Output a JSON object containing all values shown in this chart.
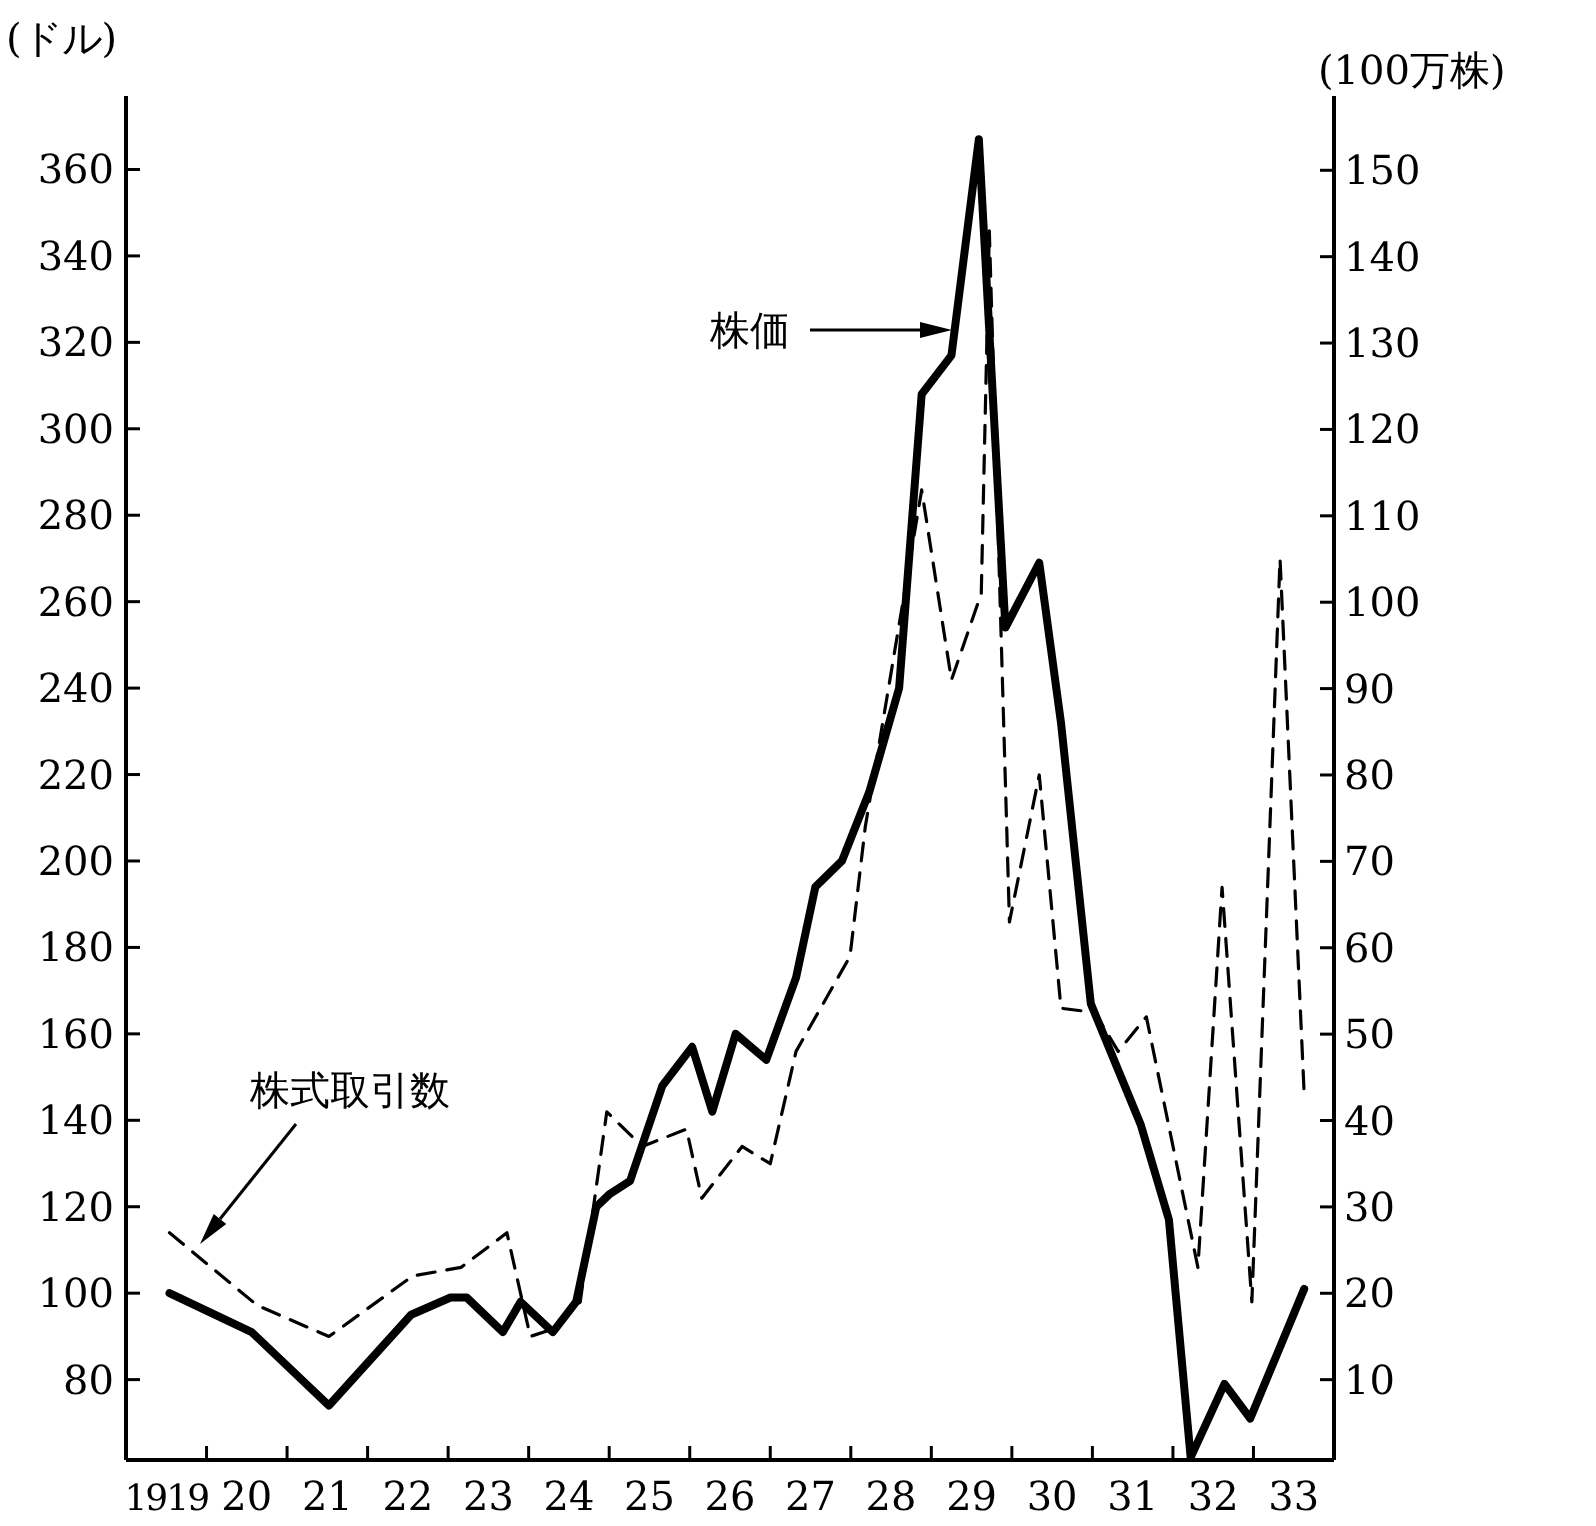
{
  "chart_data": {
    "type": "line",
    "ylabel": "(ドル)",
    "y2label": "(100万株)",
    "xlim": [
      1918.5,
      1933.5
    ],
    "xticks": [
      {
        "value": 1919,
        "label": "1919"
      },
      {
        "value": 1919.5,
        "label": null
      },
      {
        "value": 1920,
        "label": "20"
      },
      {
        "value": 1920.5,
        "label": null
      },
      {
        "value": 1921,
        "label": "21"
      },
      {
        "value": 1921.5,
        "label": null
      },
      {
        "value": 1922,
        "label": "22"
      },
      {
        "value": 1922.5,
        "label": null
      },
      {
        "value": 1923,
        "label": "23"
      },
      {
        "value": 1923.5,
        "label": null
      },
      {
        "value": 1924,
        "label": "24"
      },
      {
        "value": 1924.5,
        "label": null
      },
      {
        "value": 1925,
        "label": "25"
      },
      {
        "value": 1925.5,
        "label": null
      },
      {
        "value": 1926,
        "label": "26"
      },
      {
        "value": 1926.5,
        "label": null
      },
      {
        "value": 1927,
        "label": "27"
      },
      {
        "value": 1927.5,
        "label": null
      },
      {
        "value": 1928,
        "label": "28"
      },
      {
        "value": 1928.5,
        "label": null
      },
      {
        "value": 1929,
        "label": "29"
      },
      {
        "value": 1929.5,
        "label": null
      },
      {
        "value": 1930,
        "label": "30"
      },
      {
        "value": 1930.5,
        "label": null
      },
      {
        "value": 1931,
        "label": "31"
      },
      {
        "value": 1931.5,
        "label": null
      },
      {
        "value": 1932,
        "label": "32"
      },
      {
        "value": 1932.5,
        "label": null
      },
      {
        "value": 1933,
        "label": "33"
      }
    ],
    "ylim": [
      61.4,
      377
    ],
    "yticks": [
      80,
      100,
      120,
      140,
      160,
      180,
      200,
      220,
      240,
      260,
      280,
      300,
      320,
      340,
      360
    ],
    "y2lim": [
      0.7,
      158.6
    ],
    "y2ticks": [
      10,
      20,
      30,
      40,
      50,
      60,
      70,
      80,
      90,
      100,
      110,
      120,
      130,
      140,
      150
    ],
    "grid": false,
    "series": [
      {
        "color": "#000000",
        "line_style": "solid",
        "x": [
          1919.04,
          1920.06,
          1921.02,
          1922.04,
          1922.53,
          1922.73,
          1923.18,
          1923.4,
          1923.8,
          1924.09,
          1924.34,
          1924.51,
          1924.76,
          1925.16,
          1925.53,
          1925.78,
          1926.07,
          1926.45,
          1926.82,
          1927.06,
          1927.39,
          1927.73,
          1928.1,
          1928.38,
          1928.75,
          1929.09,
          1929.42,
          1929.84,
          1930.11,
          1930.48,
          1931.1,
          1931.45,
          1931.72,
          1932.14,
          1932.46,
          1933.13
        ],
        "values": [
          100,
          91,
          74,
          95,
          99,
          99,
          91,
          98,
          91,
          98,
          120,
          123,
          126,
          148,
          157,
          142,
          160,
          154,
          173,
          194,
          200,
          216,
          240,
          308,
          317,
          367,
          254,
          269,
          232,
          167,
          139,
          117,
          62,
          79,
          71,
          101
        ]
      },
      {
        "color": "#000000",
        "line_style": "dashed",
        "axis": "y2",
        "x": [
          1919.04,
          1920.13,
          1921.02,
          1922.06,
          1922.66,
          1923.23,
          1923.52,
          1923.85,
          1924.14,
          1924.47,
          1924.91,
          1925.46,
          1925.65,
          1926.15,
          1926.5,
          1926.82,
          1927.49,
          1927.68,
          1928.38,
          1928.75,
          1929.12,
          1929.22,
          1929.47,
          1929.84,
          1930.11,
          1930.53,
          1930.82,
          1931.17,
          1931.81,
          1932.11,
          1932.48,
          1932.83,
          1933.13
        ],
        "values": [
          27,
          18.6,
          15,
          22,
          23,
          27,
          15,
          16,
          19,
          41,
          37,
          39,
          31,
          37,
          35,
          48,
          59,
          74,
          113,
          91,
          101,
          143,
          63,
          80,
          53,
          52.5,
          48,
          52,
          23,
          67,
          19,
          105,
          43
        ]
      }
    ],
    "annotations": [
      "株価",
      "株式取引数"
    ]
  }
}
